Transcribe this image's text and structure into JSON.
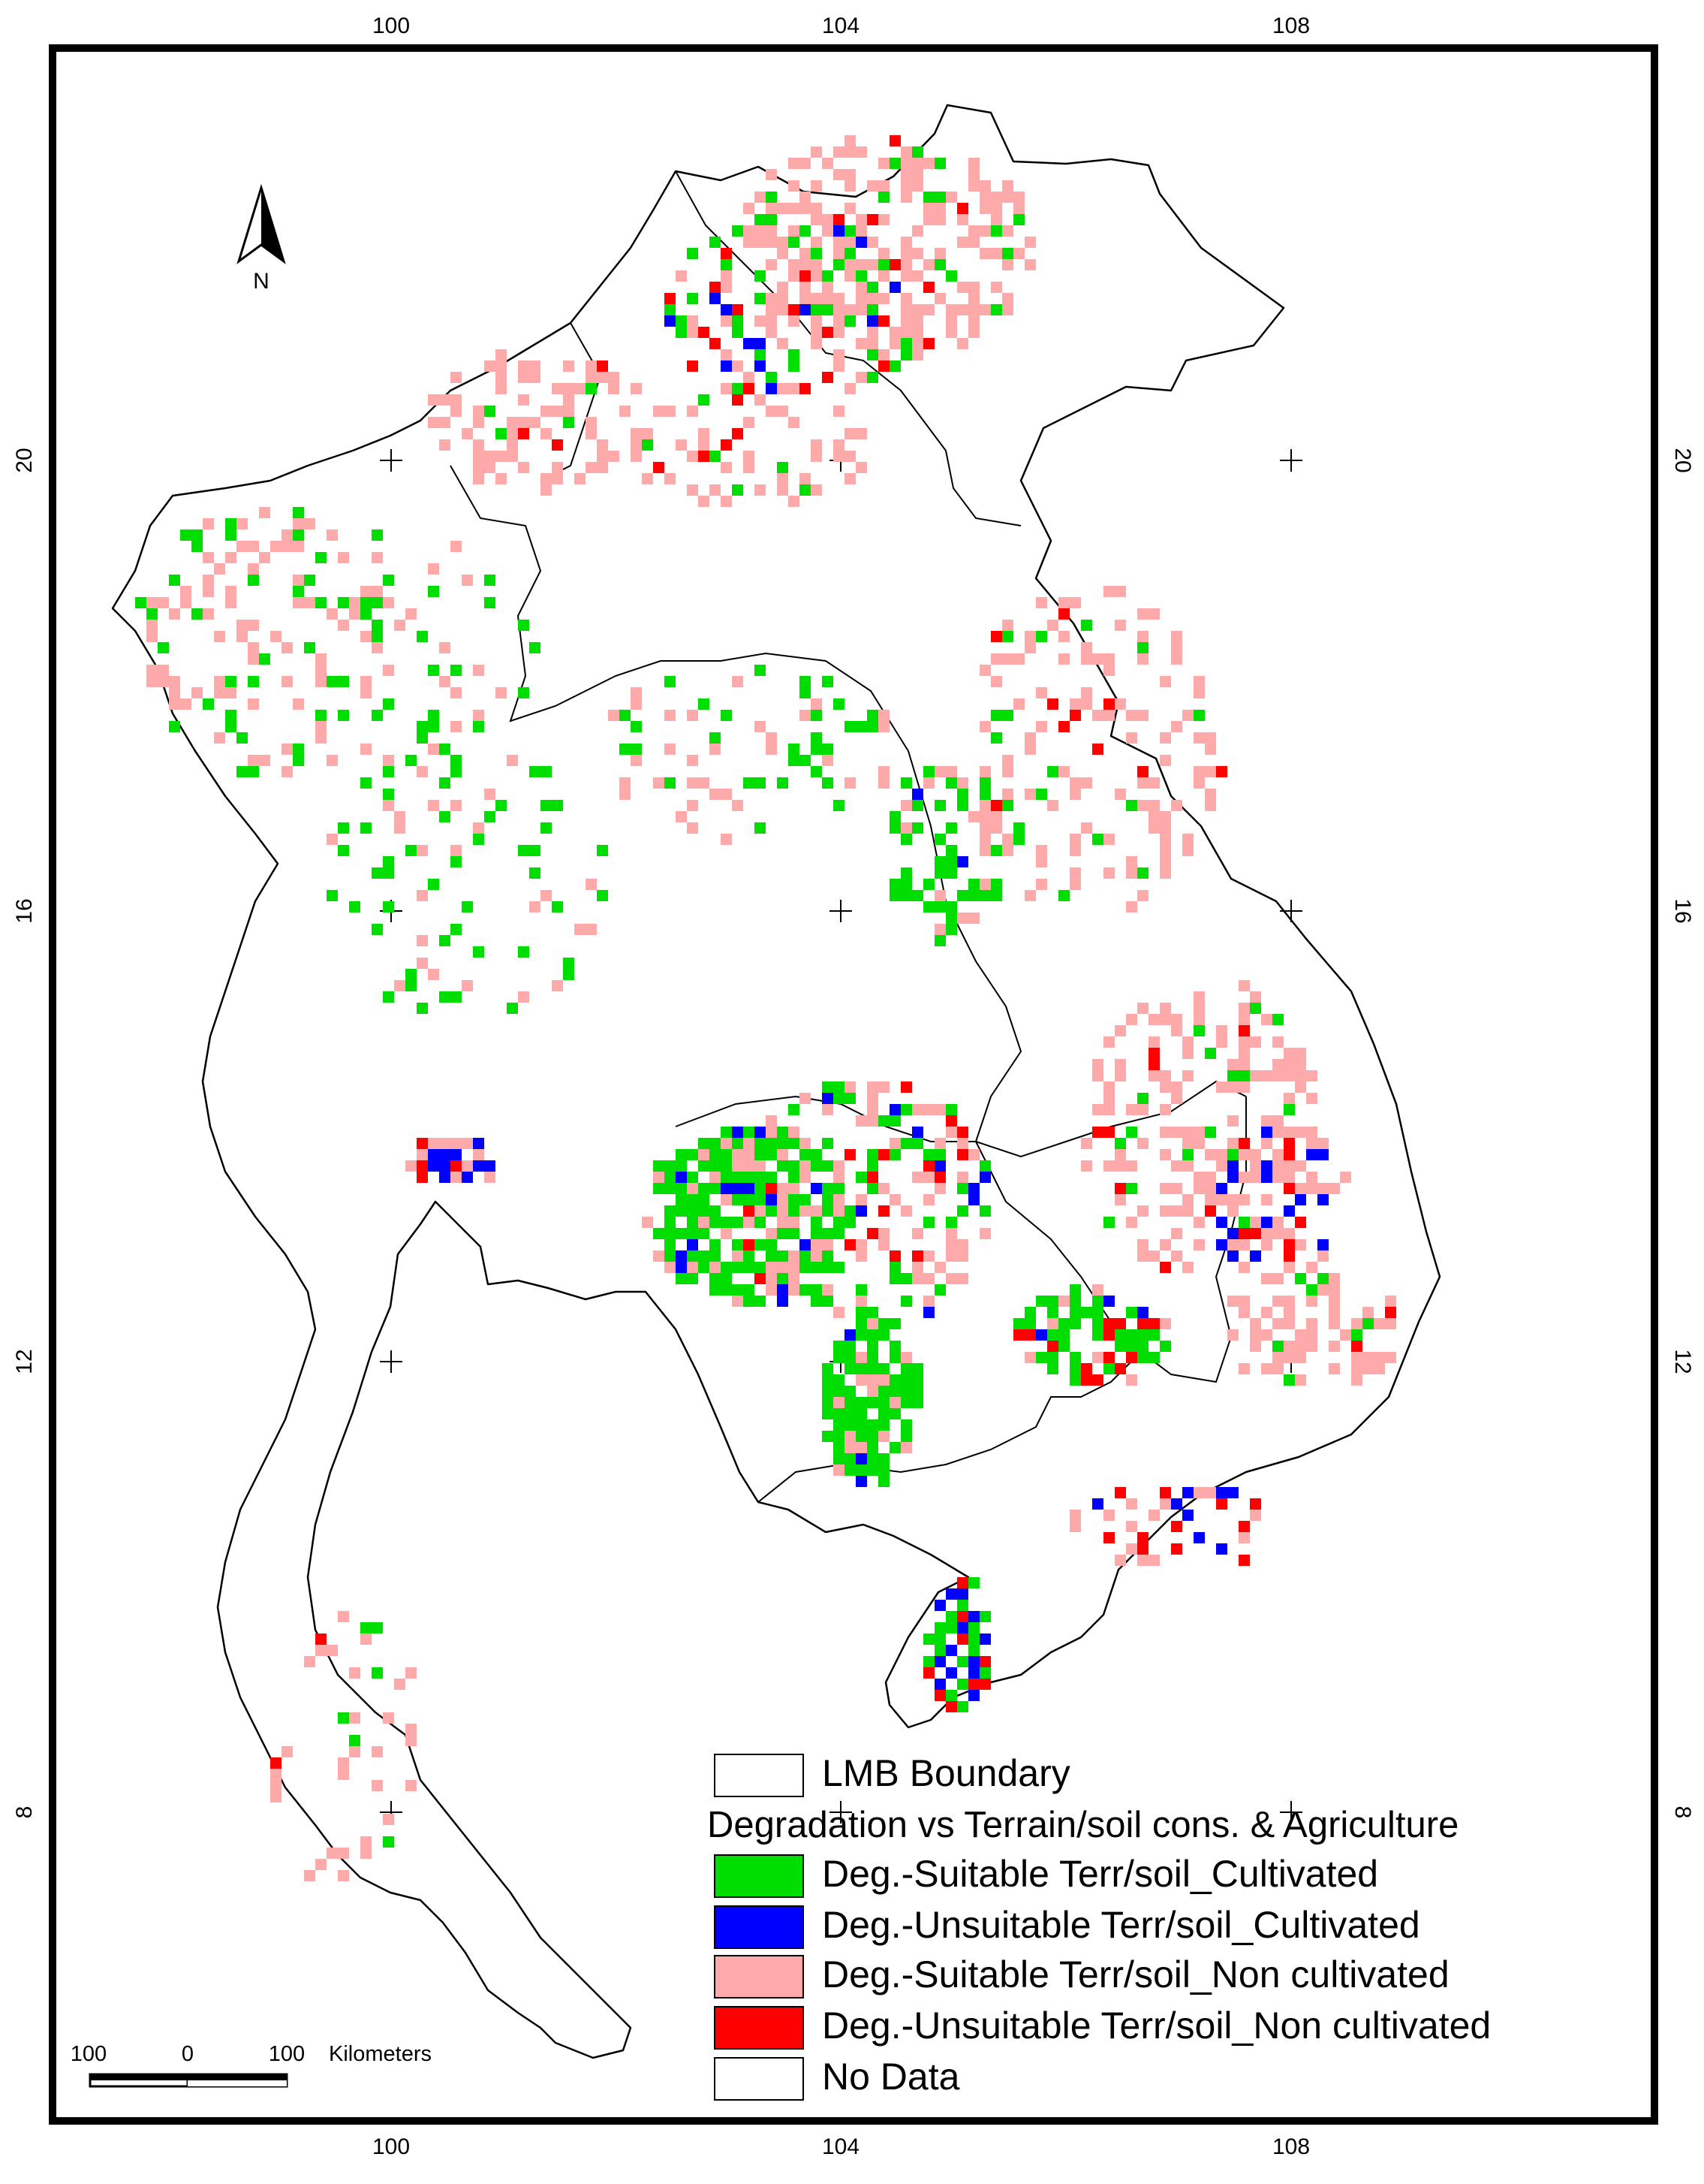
{
  "axes": {
    "top": [
      "100",
      "104",
      "108"
    ],
    "bottom": [
      "100",
      "104",
      "108"
    ],
    "left": [
      "20",
      "16",
      "12",
      "8"
    ],
    "right": [
      "20",
      "16",
      "12",
      "8"
    ]
  },
  "north_arrow": {
    "label": "N"
  },
  "scale_bar": {
    "labels": [
      "100",
      "0",
      "100"
    ],
    "unit": "Kilometers"
  },
  "legend": {
    "boundary_label": "LMB Boundary",
    "title": "Degradation vs Terrain/soil cons. & Agriculture",
    "items": [
      {
        "label": "Deg.-Suitable Terr/soil_Cultivated",
        "color": "#00dd00"
      },
      {
        "label": "Deg.-Unsuitable Terr/soil_Cultivated",
        "color": "#0000ff"
      },
      {
        "label": "Deg.-Suitable Terr/soil_Non cultivated",
        "color": "#ffaaaa"
      },
      {
        "label": "Deg.-Unsuitable Terr/soil_Non cultivated",
        "color": "#ff0000"
      },
      {
        "label": "No Data",
        "color": "#ffffff"
      }
    ]
  }
}
